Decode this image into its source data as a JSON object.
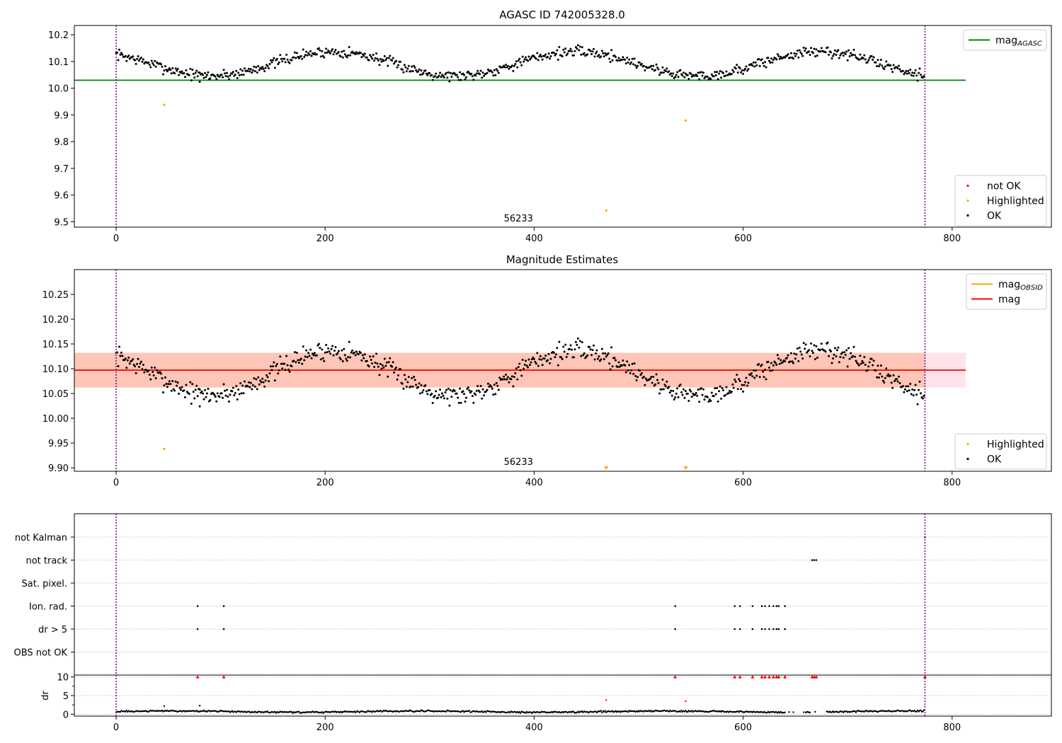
{
  "chart_data": [
    {
      "type": "scatter",
      "title": "AGASC ID 742005328.0",
      "xlim": [
        -40,
        895
      ],
      "ylim": [
        9.48,
        10.235
      ],
      "xticks": [
        0,
        200,
        400,
        600,
        800
      ],
      "yticks": [
        9.5,
        9.6,
        9.7,
        9.8,
        9.9,
        10.0,
        10.1,
        10.2
      ],
      "grid": false,
      "vlines": [
        0,
        774
      ],
      "hlines": [
        {
          "name": "mag_AGASC",
          "y": 10.03,
          "color": "#008000",
          "xrange": [
            -40,
            813
          ]
        }
      ],
      "annotation": {
        "text": "56233",
        "x": 385,
        "y": 9.5
      },
      "wave": {
        "base": 10.092,
        "amp": 0.045,
        "period": 233,
        "phase": 2.25,
        "noise": 0.02,
        "n": 774,
        "seed": 7
      },
      "ok_outliers": [
        [
          80,
          10.024
        ]
      ],
      "series": [
        {
          "name": "not OK",
          "color": "#ff0000",
          "points": []
        },
        {
          "name": "Highlighted",
          "color": "#ffa500",
          "points": [
            [
              46,
              9.938
            ],
            [
              469,
              9.542
            ],
            [
              545,
              9.879
            ]
          ]
        },
        {
          "name": "OK",
          "color": "#000000",
          "points": "wave"
        }
      ],
      "legend_upper": {
        "placement": "upper right",
        "entries": [
          {
            "label": "mag",
            "sub": "AGASC",
            "color": "#008000"
          }
        ]
      },
      "legend_lower": {
        "placement": "lower right",
        "entries": [
          {
            "label": "not OK",
            "color": "#ff0000"
          },
          {
            "label": "Highlighted",
            "color": "#ffa500"
          },
          {
            "label": "OK",
            "color": "#000000"
          }
        ]
      }
    },
    {
      "type": "scatter",
      "title": "Magnitude Estimates",
      "xlim": [
        -40,
        895
      ],
      "ylim": [
        9.893,
        10.3
      ],
      "xticks": [
        0,
        200,
        400,
        600,
        800
      ],
      "yticks": [
        9.9,
        9.95,
        10.0,
        10.05,
        10.1,
        10.15,
        10.2,
        10.25
      ],
      "ytick_labels": [
        "9.90",
        "9.95",
        "10.00",
        "10.05",
        "10.10",
        "10.15",
        "10.20",
        "10.25"
      ],
      "grid": false,
      "vlines": [
        0,
        774
      ],
      "bands": [
        {
          "x0": -40,
          "x1": 813,
          "y0": 10.062,
          "y1": 10.132,
          "color": "#ffc0cb"
        },
        {
          "x0": -40,
          "x1": 774,
          "y0": 10.062,
          "y1": 10.132,
          "color": "#ffa07a"
        }
      ],
      "hlines": [
        {
          "name": "mag_OBSID",
          "y": 10.097,
          "color": "#ffa500",
          "xrange": [
            -40,
            774
          ]
        },
        {
          "name": "mag",
          "y": 10.097,
          "color": "#ff0000",
          "xrange": [
            -40,
            813
          ]
        }
      ],
      "annotation": {
        "text": "56233",
        "x": 385,
        "y": 9.905
      },
      "wave": "same",
      "ok_outliers": [
        [
          80,
          10.024
        ]
      ],
      "series": [
        {
          "name": "Highlighted",
          "color": "#ffa500",
          "points": [
            [
              46,
              9.938
            ]
          ]
        },
        {
          "name": "OK",
          "color": "#000000",
          "points": "wave"
        }
      ],
      "clipped_markers": [
        469,
        545
      ],
      "legend_upper": {
        "placement": "upper right",
        "entries": [
          {
            "label": "mag",
            "sub": "OBSID",
            "color": "#ffa500"
          },
          {
            "label": "mag",
            "sub": "",
            "color": "#ff0000"
          }
        ]
      },
      "legend_lower": {
        "placement": "lower right",
        "entries": [
          {
            "label": "Highlighted",
            "color": "#ffa500"
          },
          {
            "label": "OK",
            "color": "#000000"
          }
        ]
      }
    },
    {
      "type": "scatter",
      "title": "",
      "xlim": [
        -40,
        895
      ],
      "xticks": [
        0,
        200,
        400,
        600,
        800
      ],
      "vlines": [
        0,
        774
      ],
      "flag_rows": [
        "not Kalman",
        "not track",
        "Sat. pixel.",
        "Ion. rad.",
        "dr > 5",
        "OBS not OK"
      ],
      "flag_points": {
        "not Kalman": [
          774
        ],
        "not track": [
          666,
          668,
          670
        ],
        "Sat. pixel.": [],
        "Ion. rad.": [
          78,
          103,
          535,
          592,
          597,
          609,
          618,
          621,
          625,
          629,
          632,
          634,
          640
        ],
        "dr > 5": [
          78,
          103,
          535,
          592,
          597,
          609,
          618,
          621,
          625,
          629,
          632,
          634,
          640
        ],
        "OBS not OK": []
      },
      "dr": {
        "ylabel": "dr",
        "ylim": [
          -0.5,
          10.5
        ],
        "yticks": [
          0,
          5,
          10
        ],
        "clip_value": 10,
        "over_limit_x": [
          78,
          103,
          535,
          592,
          597,
          609,
          618,
          621,
          625,
          629,
          632,
          634,
          640,
          666,
          668,
          670,
          774
        ],
        "outliers": [
          [
            46,
            2.2
          ],
          [
            80,
            2.3
          ],
          [
            469,
            3.8
          ],
          [
            545,
            3.5
          ]
        ],
        "base_level": 0.7,
        "noise": 0.25,
        "gaps": [
          [
            640,
            660
          ],
          [
            664,
            680
          ]
        ]
      }
    }
  ]
}
